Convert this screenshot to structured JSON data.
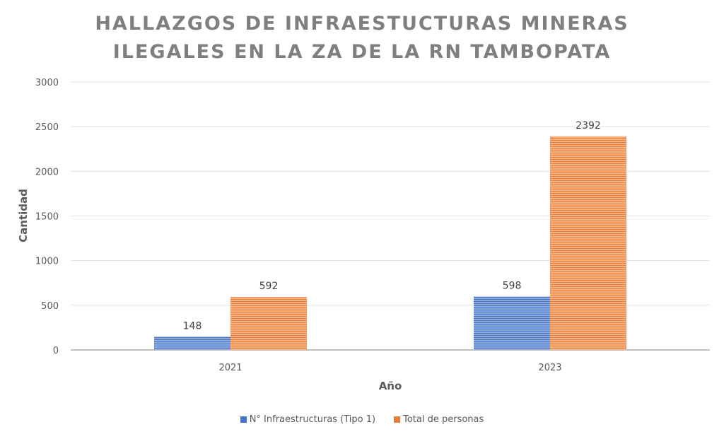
{
  "chart_data": {
    "type": "bar",
    "title_lines": [
      "HALLAZGOS DE INFRAESTUCTURAS MINERAS",
      "ILEGALES EN LA ZA DE LA RN TAMBOPATA"
    ],
    "xlabel": "Año",
    "ylabel": "Cantidad",
    "categories": [
      "2021",
      "2023"
    ],
    "series": [
      {
        "name": "N° Infraestructuras (Tipo 1)",
        "values": [
          148,
          598
        ],
        "color": "#4472c4",
        "stripe": "#8faadc"
      },
      {
        "name": "Total de personas",
        "values": [
          592,
          2392
        ],
        "color": "#ed7d31",
        "stripe": "#f4b183"
      }
    ],
    "ylim": [
      0,
      3000
    ],
    "yticks": [
      "0",
      "500",
      "1000",
      "1500",
      "2000",
      "2500",
      "3000"
    ],
    "ytick_values": [
      0,
      500,
      1000,
      1500,
      2000,
      2500,
      3000
    ],
    "data_labels": [
      [
        "148",
        "598"
      ],
      [
        "592",
        "2392"
      ]
    ],
    "grid": true,
    "legend_position": "bottom"
  }
}
